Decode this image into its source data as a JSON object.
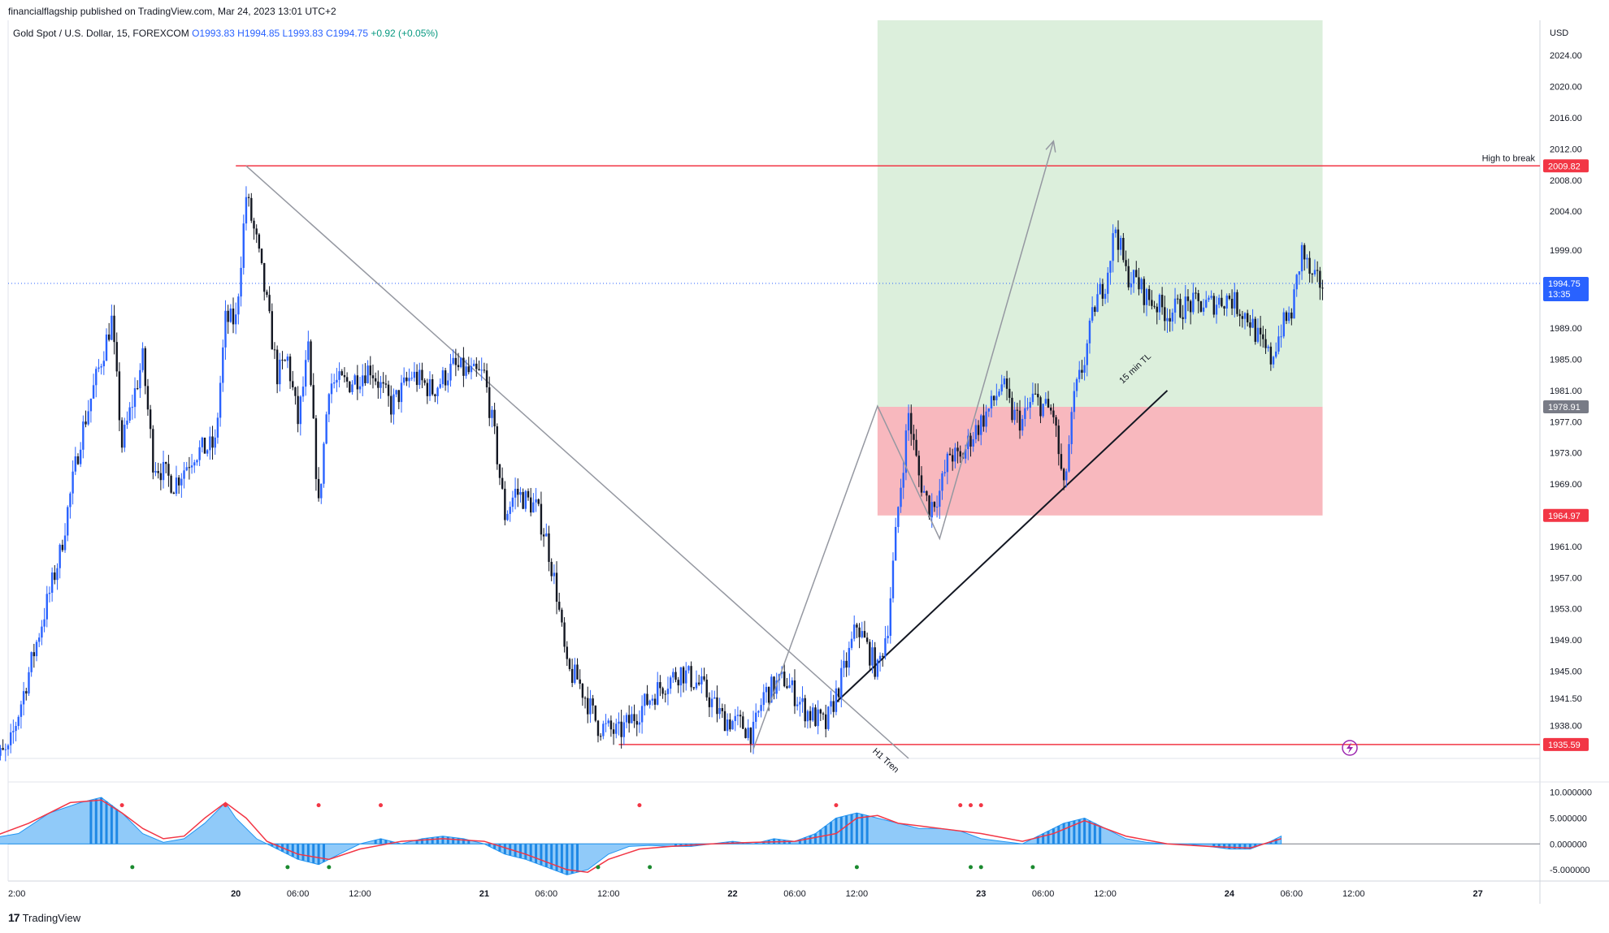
{
  "header": {
    "publisher": "financialflagship published on TradingView.com, Mar 24, 2023 13:01 UTC+2",
    "symbol": "Gold Spot / U.S. Dollar, 15, FOREXCOM",
    "open": "O1993.83",
    "high": "H1994.85",
    "low": "L1993.83",
    "close": "C1994.75",
    "change": "+0.92 (+0.05%)"
  },
  "footer": {
    "brand": "TradingView",
    "logo": "17"
  },
  "colors": {
    "bull": "#2962ff",
    "bear": "#131722",
    "level": "#f23645",
    "zone_profit": "#dcefdc",
    "zone_loss": "#f8b8be",
    "macd_line": "#f23645",
    "hist": "#2196f3",
    "dot_red": "#f23645",
    "dot_green": "#1b8a2f"
  },
  "chart_data": [
    {
      "type": "candlestick",
      "currency": "USD",
      "y_ticks": [
        "2024.00",
        "2020.00",
        "2016.00",
        "2012.00",
        "2008.00",
        "2004.00",
        "1999.00",
        "1989.00",
        "1985.00",
        "1981.00",
        "1977.00",
        "1973.00",
        "1969.00",
        "1961.00",
        "1957.00",
        "1953.00",
        "1949.00",
        "1945.00",
        "1941.50",
        "1938.00"
      ],
      "y_tick_values": [
        2024,
        2020,
        2016,
        2012,
        2008,
        2004,
        1999,
        1989,
        1985,
        1981,
        1977,
        1973,
        1969,
        1961,
        1957,
        1953,
        1949,
        1945,
        1941.5,
        1938
      ],
      "ylim": [
        1933.8,
        2028.5
      ],
      "x_ticks": [
        "2:00",
        "20",
        "06:00",
        "12:00",
        "21",
        "06:00",
        "12:00",
        "22",
        "06:00",
        "12:00",
        "23",
        "06:00",
        "12:00",
        "24",
        "06:00",
        "12:00",
        "27"
      ],
      "x_tick_hours": [
        2,
        24,
        30,
        36,
        48,
        54,
        60,
        72,
        78,
        84,
        96,
        102,
        108,
        120,
        126,
        132,
        144
      ],
      "xlim_hours": [
        2,
        150
      ],
      "price_path": [
        [
          0,
          1933.5
        ],
        [
          2,
          1934.5
        ],
        [
          5,
          1950
        ],
        [
          7,
          1960
        ],
        [
          9,
          1975
        ],
        [
          11,
          1985
        ],
        [
          12,
          1990
        ],
        [
          13,
          1974
        ],
        [
          15,
          1985
        ],
        [
          16,
          1972
        ],
        [
          18,
          1969
        ],
        [
          20,
          1973
        ],
        [
          22,
          1974
        ],
        [
          23,
          1990
        ],
        [
          24,
          1990
        ],
        [
          25,
          2006
        ],
        [
          26,
          2000
        ],
        [
          27,
          1992
        ],
        [
          28,
          1983
        ],
        [
          29,
          1985
        ],
        [
          30,
          1977
        ],
        [
          31,
          1986
        ],
        [
          32,
          1966
        ],
        [
          33,
          1982
        ],
        [
          35,
          1982
        ],
        [
          37,
          1984
        ],
        [
          39,
          1979
        ],
        [
          41,
          1983
        ],
        [
          43,
          1981
        ],
        [
          45,
          1984
        ],
        [
          47,
          1983
        ],
        [
          48,
          1983
        ],
        [
          49,
          1975
        ],
        [
          50,
          1965
        ],
        [
          51,
          1968
        ],
        [
          53,
          1966
        ],
        [
          54,
          1962
        ],
        [
          55,
          1955
        ],
        [
          56,
          1945
        ],
        [
          57,
          1944
        ],
        [
          59,
          1938
        ],
        [
          61,
          1937
        ],
        [
          63,
          1940
        ],
        [
          65,
          1943
        ],
        [
          67,
          1945
        ],
        [
          69,
          1943
        ],
        [
          71,
          1939
        ],
        [
          73,
          1938
        ],
        [
          74,
          1937
        ],
        [
          75,
          1942
        ],
        [
          77,
          1944
        ],
        [
          79,
          1940
        ],
        [
          81,
          1938
        ],
        [
          83,
          1946
        ],
        [
          84,
          1951
        ],
        [
          85,
          1948
        ],
        [
          86,
          1945
        ],
        [
          87,
          1951
        ],
        [
          88,
          1966
        ],
        [
          89,
          1978
        ],
        [
          90,
          1970
        ],
        [
          91,
          1966
        ],
        [
          92,
          1968
        ],
        [
          93,
          1973
        ],
        [
          94,
          1972
        ],
        [
          95,
          1975
        ],
        [
          96,
          1977
        ],
        [
          97,
          1979
        ],
        [
          98,
          1982
        ],
        [
          99,
          1978
        ],
        [
          100,
          1977
        ],
        [
          101,
          1980
        ],
        [
          102,
          1979
        ],
        [
          103,
          1978
        ],
        [
          104,
          1968
        ],
        [
          105,
          1980
        ],
        [
          106,
          1985
        ],
        [
          107,
          1992
        ],
        [
          108,
          1995
        ],
        [
          109,
          2002
        ],
        [
          110,
          1996
        ],
        [
          111,
          1995
        ],
        [
          112,
          1993
        ],
        [
          114,
          1991
        ],
        [
          116,
          1992
        ],
        [
          118,
          1992
        ],
        [
          120,
          1993
        ],
        [
          122,
          1990
        ],
        [
          123,
          1987
        ],
        [
          124,
          1985
        ],
        [
          125,
          1989
        ],
        [
          126,
          1991
        ],
        [
          127,
          1999
        ],
        [
          128,
          1995
        ],
        [
          129,
          1994.75
        ]
      ],
      "levels": [
        {
          "name": "high-to-break",
          "value": 2009.82,
          "label": "2009.82",
          "text": "High to break"
        },
        {
          "name": "zone-top",
          "value": 1978.91,
          "label": "1978.91"
        },
        {
          "name": "zone-bottom",
          "value": 1964.97,
          "label": "1964.97"
        },
        {
          "name": "low-support",
          "value": 1935.59,
          "label": "1935.59"
        }
      ],
      "current_price": {
        "value": 1994.75,
        "label": "1994.75",
        "countdown": "13:35"
      },
      "position": {
        "entry": 1978.91,
        "stop": 1964.97,
        "target": 2028.5,
        "start_hour": 86,
        "end_hour": 129
      },
      "trendlines": [
        {
          "name": "h1-trendline",
          "text": "H1 Tren",
          "from": [
            25,
            2009.82
          ],
          "to": [
            89,
            1933.8
          ]
        },
        {
          "name": "15min-trendline",
          "text": "15 min TL",
          "from": [
            82,
            1941
          ],
          "to": [
            114,
            1981
          ]
        }
      ],
      "projection_path": [
        [
          74,
          1935
        ],
        [
          86,
          1979
        ],
        [
          92,
          1962
        ],
        [
          103,
          2013
        ]
      ]
    },
    {
      "type": "histogram",
      "indicator": "MACD",
      "y_ticks": [
        "10.000000",
        "5.000000",
        "0.000000",
        "-5.000000"
      ],
      "y_tick_values": [
        10,
        5,
        0,
        -5
      ],
      "ylim": [
        -7.2,
        12
      ],
      "hist_path": [
        [
          0,
          1
        ],
        [
          3,
          2
        ],
        [
          6,
          6
        ],
        [
          9,
          8
        ],
        [
          11,
          9
        ],
        [
          13,
          6
        ],
        [
          15,
          2
        ],
        [
          17,
          0.3
        ],
        [
          19,
          1
        ],
        [
          21,
          4
        ],
        [
          23,
          8
        ],
        [
          24,
          5
        ],
        [
          26,
          1
        ],
        [
          28,
          -1
        ],
        [
          30,
          -3
        ],
        [
          32,
          -4
        ],
        [
          34,
          -2
        ],
        [
          36,
          0
        ],
        [
          38,
          1
        ],
        [
          40,
          0
        ],
        [
          42,
          1
        ],
        [
          44,
          1.5
        ],
        [
          46,
          1
        ],
        [
          48,
          0
        ],
        [
          50,
          -2
        ],
        [
          52,
          -3
        ],
        [
          54,
          -4.5
        ],
        [
          56,
          -6
        ],
        [
          58,
          -5
        ],
        [
          60,
          -2
        ],
        [
          62,
          -0.5
        ],
        [
          64,
          -0.3
        ],
        [
          66,
          -0.5
        ],
        [
          68,
          -0.5
        ],
        [
          70,
          0
        ],
        [
          72,
          0.5
        ],
        [
          74,
          0
        ],
        [
          76,
          1
        ],
        [
          78,
          0.5
        ],
        [
          80,
          2
        ],
        [
          82,
          5
        ],
        [
          84,
          6
        ],
        [
          86,
          5
        ],
        [
          88,
          4
        ],
        [
          90,
          3
        ],
        [
          92,
          3
        ],
        [
          94,
          2.5
        ],
        [
          96,
          1
        ],
        [
          98,
          0.5
        ],
        [
          100,
          0
        ],
        [
          102,
          2
        ],
        [
          104,
          4
        ],
        [
          106,
          5
        ],
        [
          108,
          3
        ],
        [
          110,
          1
        ],
        [
          112,
          0.3
        ],
        [
          114,
          0
        ],
        [
          116,
          0
        ],
        [
          118,
          -0.5
        ],
        [
          120,
          -1
        ],
        [
          122,
          -1
        ],
        [
          124,
          0.5
        ],
        [
          125,
          1.5
        ]
      ],
      "signal_path": [
        [
          0,
          1
        ],
        [
          4,
          4
        ],
        [
          8,
          8
        ],
        [
          11,
          8.5
        ],
        [
          13,
          6
        ],
        [
          15,
          3
        ],
        [
          17,
          1
        ],
        [
          19,
          1.5
        ],
        [
          21,
          5
        ],
        [
          23,
          8
        ],
        [
          25,
          5
        ],
        [
          27,
          0.5
        ],
        [
          30,
          -2
        ],
        [
          33,
          -3
        ],
        [
          36,
          -1
        ],
        [
          40,
          0.5
        ],
        [
          44,
          1
        ],
        [
          48,
          0.5
        ],
        [
          52,
          -2
        ],
        [
          56,
          -5
        ],
        [
          58,
          -5.5
        ],
        [
          60,
          -3
        ],
        [
          63,
          -1
        ],
        [
          66,
          -0.5
        ],
        [
          70,
          0
        ],
        [
          74,
          0.3
        ],
        [
          78,
          0.5
        ],
        [
          82,
          2
        ],
        [
          84,
          5
        ],
        [
          86,
          5.5
        ],
        [
          88,
          4
        ],
        [
          92,
          3
        ],
        [
          96,
          2
        ],
        [
          100,
          0.5
        ],
        [
          103,
          2
        ],
        [
          106,
          4.5
        ],
        [
          108,
          3
        ],
        [
          110,
          1.5
        ],
        [
          114,
          0
        ],
        [
          118,
          -0.5
        ],
        [
          122,
          -0.8
        ],
        [
          125,
          1
        ]
      ],
      "dots_red": [
        [
          13,
          7.5
        ],
        [
          23,
          7.5
        ],
        [
          32,
          7.5
        ],
        [
          38,
          7.5
        ],
        [
          63,
          7.5
        ],
        [
          82,
          7.5
        ],
        [
          94,
          7.5
        ],
        [
          95,
          7.5
        ],
        [
          96,
          7.5
        ]
      ],
      "dots_green": [
        [
          14,
          -4.5
        ],
        [
          29,
          -4.5
        ],
        [
          33,
          -4.5
        ],
        [
          59,
          -4.5
        ],
        [
          64,
          -4.5
        ],
        [
          84,
          -4.5
        ],
        [
          95,
          -4.5
        ],
        [
          96,
          -4.5
        ],
        [
          101,
          -4.5
        ]
      ]
    }
  ]
}
